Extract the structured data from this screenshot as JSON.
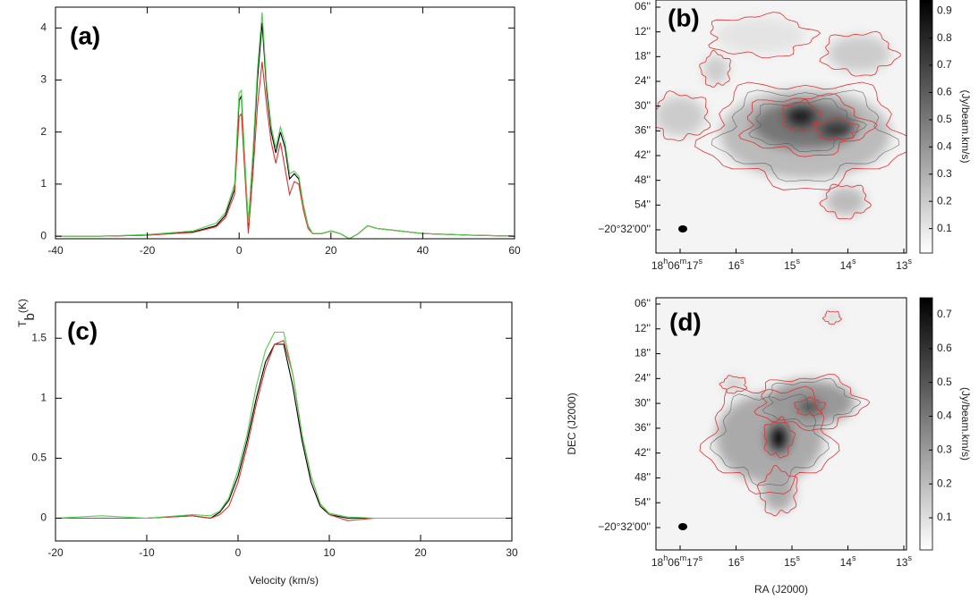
{
  "chart_data": [
    {
      "type": "line",
      "panel_label": "(a)",
      "x": [
        -40,
        -30,
        -20,
        -10,
        -5,
        -3,
        -1,
        0,
        0.5,
        1,
        2,
        3,
        4,
        5,
        6,
        7,
        8,
        9,
        10,
        11,
        12,
        13,
        14,
        15,
        16,
        18,
        20,
        22,
        24,
        26,
        28,
        30,
        35,
        40,
        50,
        60
      ],
      "series": [
        {
          "color": "#000000",
          "values": [
            0,
            0,
            0.02,
            0.08,
            0.2,
            0.4,
            0.9,
            2.6,
            2.7,
            1.8,
            0.2,
            1.5,
            3.0,
            4.1,
            2.8,
            2.0,
            1.6,
            2.0,
            1.7,
            1.1,
            1.2,
            1.1,
            0.6,
            0.2,
            0.05,
            0.05,
            0.1,
            0.05,
            -0.05,
            0.05,
            0.2,
            0.15,
            0.1,
            0.05,
            0.02,
            0
          ]
        },
        {
          "color": "#e0302a",
          "values": [
            0,
            0,
            0.02,
            0.07,
            0.18,
            0.35,
            0.8,
            2.3,
            2.35,
            1.6,
            0.05,
            1.2,
            2.5,
            3.35,
            2.5,
            1.8,
            1.4,
            1.8,
            1.3,
            0.8,
            1.05,
            1.0,
            0.5,
            0.15,
            0.05,
            0.05,
            0.1,
            0.05,
            -0.05,
            0.05,
            0.2,
            0.15,
            0.1,
            0.05,
            0.02,
            0
          ]
        },
        {
          "color": "#4cd14c",
          "values": [
            0,
            0,
            0.03,
            0.1,
            0.25,
            0.45,
            1.0,
            2.75,
            2.8,
            1.9,
            0.25,
            1.6,
            3.2,
            4.3,
            2.9,
            2.1,
            1.7,
            2.1,
            1.8,
            1.2,
            1.25,
            1.15,
            0.6,
            0.2,
            0.05,
            0.05,
            0.1,
            0.05,
            -0.05,
            0.05,
            0.2,
            0.15,
            0.1,
            0.05,
            0.02,
            0
          ]
        }
      ],
      "xlim": [
        -40,
        60
      ],
      "xticks": [
        -40,
        -20,
        0,
        20,
        40,
        60
      ],
      "ylim": [
        -0.05,
        4.4
      ],
      "yticks": [
        0,
        1,
        2,
        3,
        4
      ]
    },
    {
      "type": "map",
      "panel_label": "(b)",
      "ytick_labels": [
        "06''",
        "12''",
        "18''",
        "24''",
        "30''",
        "36''",
        "42''",
        "48''",
        "54''",
        "−20°32'00''"
      ],
      "xtick_labels": [
        "18h06m17s",
        "16s",
        "15s",
        "14s",
        "13s"
      ],
      "clim": [
        0.01,
        0.94
      ],
      "cticks": [
        0.1,
        0.2,
        0.3,
        0.4,
        0.5,
        0.6,
        0.7,
        0.8,
        0.9
      ],
      "clabel": "(Jy/beam.km/s)"
    },
    {
      "type": "line",
      "panel_label": "(c)",
      "x": [
        -20,
        -15,
        -10,
        -5,
        -3,
        -2,
        -1,
        0,
        1,
        2,
        3,
        4,
        5,
        6,
        7,
        8,
        9,
        10,
        12,
        15,
        20,
        25,
        30
      ],
      "series": [
        {
          "color": "#000000",
          "values": [
            0,
            0,
            0,
            0.02,
            0,
            0.05,
            0.15,
            0.35,
            0.65,
            1.0,
            1.3,
            1.45,
            1.45,
            1.1,
            0.65,
            0.3,
            0.1,
            0.03,
            0,
            0,
            0,
            0,
            0
          ]
        },
        {
          "color": "#e0302a",
          "values": [
            0,
            0,
            0,
            0.02,
            0,
            0.03,
            0.1,
            0.3,
            0.6,
            0.95,
            1.25,
            1.45,
            1.48,
            1.2,
            0.7,
            0.35,
            0.12,
            0.03,
            -0.02,
            0,
            0,
            0,
            0
          ]
        },
        {
          "color": "#4cd14c",
          "values": [
            0,
            0.02,
            0,
            0.03,
            0.02,
            0.06,
            0.17,
            0.4,
            0.7,
            1.1,
            1.4,
            1.55,
            1.55,
            1.2,
            0.7,
            0.35,
            0.12,
            0.04,
            0.01,
            0,
            0,
            0,
            0
          ]
        }
      ],
      "xlim": [
        -20,
        30
      ],
      "xticks": [
        -20,
        -10,
        0,
        10,
        20,
        30
      ],
      "ylim": [
        -0.19,
        1.8
      ],
      "yticks": [
        0,
        0.5,
        1,
        1.5
      ],
      "xlabel": "Velocity (km/s)",
      "ylabel": {
        "main": "T",
        "sub": "b",
        "unit": "(K)"
      }
    },
    {
      "type": "map",
      "panel_label": "(d)",
      "ytick_labels": [
        "06''",
        "12''",
        "18''",
        "24''",
        "30''",
        "36''",
        "42''",
        "48''",
        "54''",
        "−20°32'00''"
      ],
      "xtick_labels": [
        "18h06m17s",
        "16s",
        "15s",
        "14s",
        "13s"
      ],
      "clim": [
        0.005,
        0.75
      ],
      "cticks": [
        0.1,
        0.2,
        0.3,
        0.4,
        0.5,
        0.6,
        0.7
      ],
      "clabel": "(Jy/beam.km/s)",
      "xlabel": "RA (J2000)",
      "ylabel": "DEC (J2000)"
    }
  ]
}
